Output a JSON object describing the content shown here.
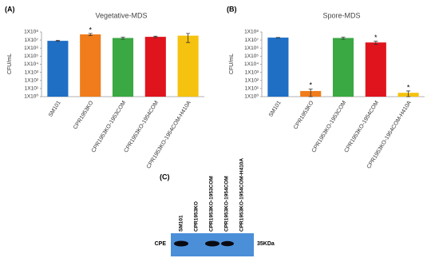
{
  "chart_data": [
    {
      "type": "bar",
      "panel": "(A)",
      "title": "Vegetative-MDS",
      "ylabel": "CFU/mL",
      "categories": [
        "SM101",
        "CPR1953KO",
        "CPR1953KO-1953COM",
        "CPR1953KO-1954COM",
        "CPR1953KO-1954COM-H410A"
      ],
      "values": [
        8000000,
        50000000,
        18000000,
        25000000,
        35000000
      ],
      "errors": [
        1000000,
        15000000,
        5000000,
        5000000,
        30000000
      ],
      "significance": [
        null,
        "*",
        null,
        null,
        null
      ],
      "colors": [
        "#1f6fc5",
        "#f07c1b",
        "#3aa843",
        "#e0141c",
        "#f5c20f"
      ],
      "log_scale": true,
      "grid": false,
      "ylim": [
        1,
        100000000
      ],
      "yticks": [
        {
          "value": 1,
          "label": "1X10⁰"
        },
        {
          "value": 10,
          "label": "1X10¹"
        },
        {
          "value": 100,
          "label": "1X10²"
        },
        {
          "value": 1000,
          "label": "1X10³"
        },
        {
          "value": 10000,
          "label": "1X10⁴"
        },
        {
          "value": 100000,
          "label": "1X10⁵"
        },
        {
          "value": 1000000,
          "label": "1X10⁶"
        },
        {
          "value": 10000000,
          "label": "1X10⁷"
        },
        {
          "value": 100000000,
          "label": "1X10⁸"
        }
      ]
    },
    {
      "type": "bar",
      "panel": "(B)",
      "title": "Spore-MDS",
      "ylabel": "CFU/mL",
      "categories": [
        "SM101",
        "CPR1953KO",
        "CPR1953KO-1953COM",
        "CPR1953KO-1954COM",
        "CPR1953KO-1954COM-H410A"
      ],
      "values": [
        20000000,
        5,
        18000000,
        5000000,
        3
      ],
      "errors": [
        1000000,
        4,
        5000000,
        2000000,
        2
      ],
      "significance": [
        null,
        "*",
        null,
        "*",
        "*"
      ],
      "colors": [
        "#1f6fc5",
        "#f07c1b",
        "#3aa843",
        "#e0141c",
        "#f5c20f"
      ],
      "log_scale": true,
      "grid": false,
      "ylim": [
        1,
        100000000
      ],
      "yticks": [
        {
          "value": 1,
          "label": "1X10⁰"
        },
        {
          "value": 10,
          "label": "1X10¹"
        },
        {
          "value": 100,
          "label": "1X10²"
        },
        {
          "value": 1000,
          "label": "1X10³"
        },
        {
          "value": 10000,
          "label": "1X10⁴"
        },
        {
          "value": 100000,
          "label": "1X10⁵"
        },
        {
          "value": 1000000,
          "label": "1X10⁶"
        },
        {
          "value": 10000000,
          "label": "1X10⁷"
        },
        {
          "value": 100000000,
          "label": "1X10⁸"
        }
      ]
    }
  ],
  "blot": {
    "panel": "(C)",
    "lanes": [
      "SM101",
      "CPR1953KO",
      "CPR1953KO-1953COM",
      "CPR1953KO-1954COM",
      "CPR1953KO-1954COM-H410A"
    ],
    "row_label": "CPE",
    "size_label": "35KDa"
  }
}
